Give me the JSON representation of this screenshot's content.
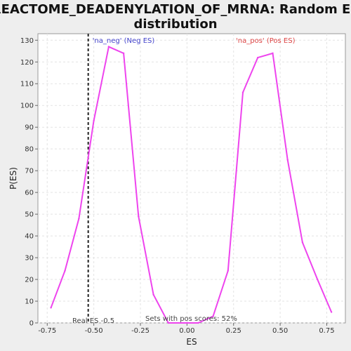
{
  "chart_data": {
    "type": "line",
    "title_line1": "REACTOME_DEADENYLATION_OF_MRNA: Random ES",
    "title_line2": "distribution",
    "xlabel": "ES",
    "ylabel": "P(ES)",
    "xlim": [
      -0.8,
      0.85
    ],
    "ylim": [
      0,
      133
    ],
    "x_ticks": [
      -0.75,
      -0.5,
      -0.25,
      0.0,
      0.25,
      0.5,
      0.75
    ],
    "x_tick_labels": [
      "-0.75",
      "-0.50",
      "-0.25",
      "0.00",
      "0.25",
      "0.50",
      "0.75"
    ],
    "y_ticks": [
      0,
      10,
      20,
      30,
      40,
      50,
      60,
      70,
      80,
      90,
      100,
      110,
      120,
      130
    ],
    "grid": true,
    "line_color": "#ee44ee",
    "series": [
      {
        "x": [
          -0.73,
          -0.655,
          -0.58,
          -0.5,
          -0.42,
          -0.34,
          -0.26,
          -0.18,
          -0.1,
          0.0,
          0.06,
          0.14,
          0.22,
          0.3,
          0.38,
          0.46,
          0.54,
          0.62,
          0.7,
          0.775
        ],
        "values": [
          7,
          24,
          48,
          93,
          127,
          124,
          49,
          13,
          0,
          0,
          0,
          3,
          24,
          106,
          122,
          124,
          75,
          37,
          20,
          5
        ]
      }
    ],
    "legend": [
      {
        "label": "'na_neg' (Neg ES)",
        "color": "#4444cc"
      },
      {
        "label": "'na_pos' (Pos ES)",
        "color": "#dd4444"
      }
    ],
    "real_es": {
      "x": -0.53,
      "label": "Real ES -0.5"
    },
    "pos_scores_label": "Sets with pos scores: 52%"
  }
}
